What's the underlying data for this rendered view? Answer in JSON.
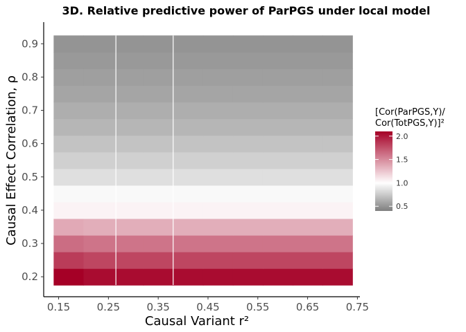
{
  "chart_data": {
    "type": "heatmap",
    "title": "3D. Relative predictive power of ParPGS under local model",
    "xlabel": "Causal Variant r²",
    "ylabel": "Causal Effect Correlation, ρ",
    "x_ticks": [
      "0.15",
      "0.25",
      "0.35",
      "0.45",
      "0.55",
      "0.65",
      "0.75"
    ],
    "x_tick_values": [
      0.15,
      0.25,
      0.35,
      0.45,
      0.55,
      0.65,
      0.75
    ],
    "y_ticks": [
      "0.2",
      "0.3",
      "0.4",
      "0.5",
      "0.6",
      "0.7",
      "0.8",
      "0.9"
    ],
    "y_tick_values": [
      0.2,
      0.3,
      0.4,
      0.5,
      0.6,
      0.7,
      0.8,
      0.9
    ],
    "xlim": [
      0.12,
      0.755
    ],
    "ylim": [
      0.14,
      0.965
    ],
    "x": [
      0.17,
      0.23,
      0.29,
      0.35,
      0.41,
      0.47,
      0.53,
      0.59,
      0.65,
      0.71
    ],
    "y": [
      0.2,
      0.25,
      0.3,
      0.35,
      0.4,
      0.45,
      0.5,
      0.55,
      0.6,
      0.65,
      0.7,
      0.75,
      0.8,
      0.85,
      0.9
    ],
    "row_values": [
      2.05,
      1.8,
      1.6,
      1.35,
      1.05,
      0.97,
      0.85,
      0.78,
      0.72,
      0.66,
      0.62,
      0.58,
      0.55,
      0.52,
      0.5
    ],
    "first_col_extra": [
      0.12,
      0.04,
      0.03,
      0.02,
      0,
      0,
      0,
      0,
      0,
      0,
      0,
      0,
      0,
      0,
      0
    ],
    "vlines": [
      0.265,
      0.38
    ],
    "legend": {
      "title_line1": "[Cor(ParPGS,Y)/",
      "title_line2": "Cor(TotPGS,Y)]²",
      "ticks": [
        "0.5",
        "1.0",
        "1.5",
        "2.0"
      ],
      "tick_values": [
        0.5,
        1.0,
        1.5,
        2.0
      ],
      "range": [
        0.4,
        2.1
      ],
      "placement": "right"
    },
    "colors": {
      "low": "#7f7f7f",
      "mid": "#ffffff",
      "high": "#a50026"
    },
    "grid": false
  }
}
